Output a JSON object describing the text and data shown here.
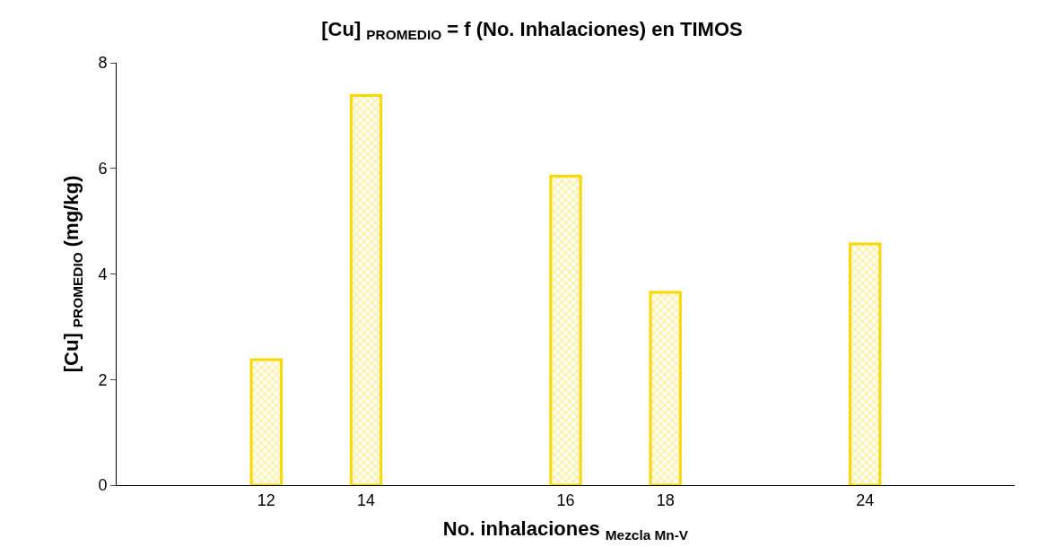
{
  "chart_data": {
    "type": "bar",
    "title": "[Cu] $_{PROMEDIO}$ = f (No. Inhalaciones) en TIMOS",
    "xlabel": "No. inhalaciones $_{Mezcla Mn-V}$",
    "ylabel": "[Cu] $_{PROMEDIO}$ (mg/kg)",
    "categories": [
      null,
      "12",
      "14",
      null,
      "16",
      "18",
      null,
      "24",
      null
    ],
    "values": [
      null,
      2.38,
      7.38,
      null,
      5.85,
      3.65,
      null,
      4.57,
      null
    ],
    "color": "#ffd700",
    "ylim": [
      0,
      8
    ],
    "yticks": [
      0,
      2,
      4,
      6,
      8
    ]
  }
}
